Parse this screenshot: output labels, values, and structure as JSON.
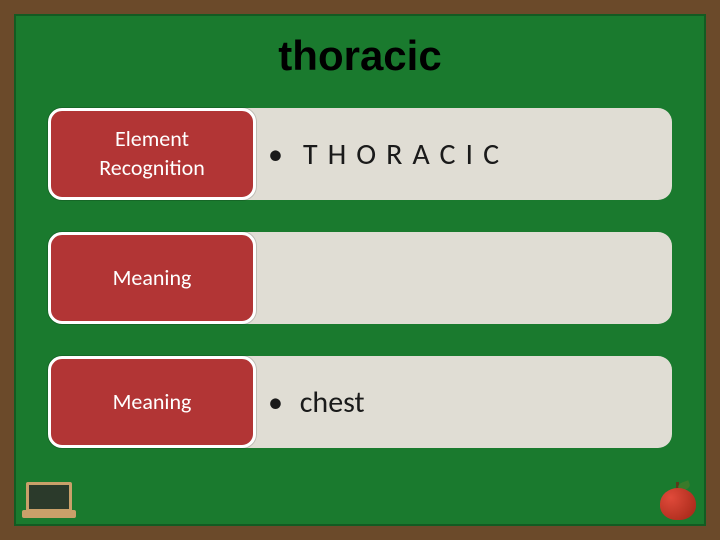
{
  "title": "thoracic",
  "colors": {
    "slide_background": "#1a7a2e",
    "slide_border": "#6b4a2a",
    "label_background": "#b23535",
    "label_border": "#ffffff",
    "label_text": "#ffffff",
    "content_background": "#e0ddd4",
    "content_text": "#1a1a1a",
    "title_text": "#000000"
  },
  "typography": {
    "title_fontsize": 42,
    "title_family": "Comic Sans MS",
    "label_fontsize": 22,
    "content_fontsize": 30
  },
  "rows": [
    {
      "label_line1": "Element",
      "label_line2": "Recognition",
      "bullet": "•",
      "content": "THORACIC",
      "letter_spaced": true
    },
    {
      "label_line1": "Meaning",
      "label_line2": "",
      "bullet": "",
      "content": "",
      "letter_spaced": false
    },
    {
      "label_line1": "Meaning",
      "label_line2": "",
      "bullet": "•",
      "content": "chest",
      "letter_spaced": false
    }
  ]
}
